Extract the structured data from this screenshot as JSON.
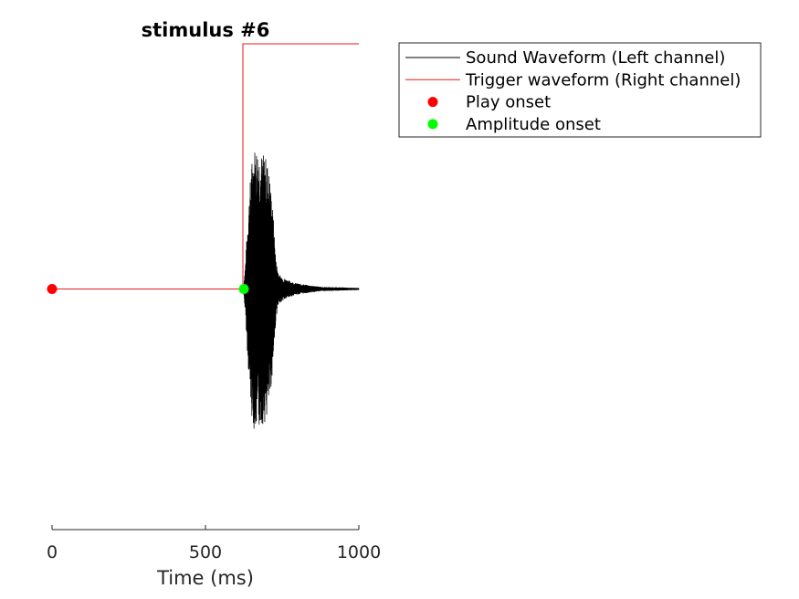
{
  "chart_data": {
    "type": "line",
    "title": "stimulus #6",
    "xlabel": "Time (ms)",
    "ylabel": "",
    "xlim": [
      0,
      1000
    ],
    "ylim": [
      -1.2,
      1.2
    ],
    "x_ticks": [
      0,
      500,
      1000
    ],
    "x_tick_labels": [
      "0",
      "500",
      "1000"
    ],
    "grid": false,
    "legend_position": "outside-top-right",
    "series": [
      {
        "name": "Sound Waveform (Left channel)",
        "kind": "line",
        "color": "#000000",
        "silence_until_ms": 625,
        "envelope": {
          "x": [
            625,
            630,
            640,
            650,
            660,
            670,
            680,
            690,
            700,
            710,
            720,
            730,
            740,
            760,
            790,
            830,
            880,
            940,
            1000
          ],
          "amp": [
            0.03,
            0.12,
            0.4,
            0.62,
            0.7,
            0.7,
            0.67,
            0.66,
            0.64,
            0.55,
            0.38,
            0.14,
            0.07,
            0.05,
            0.03,
            0.02,
            0.01,
            0.008,
            0.005
          ]
        }
      },
      {
        "name": "Trigger waveform (Right channel)",
        "kind": "line",
        "color": "#e41a1c",
        "x": [
          0,
          622,
          622,
          1000
        ],
        "y": [
          0,
          0,
          1.2,
          1.2
        ]
      },
      {
        "name": "Play onset",
        "kind": "marker",
        "color": "#ff0000",
        "x": [
          0
        ],
        "y": [
          0
        ]
      },
      {
        "name": "Amplitude onset",
        "kind": "marker",
        "color": "#00ff00",
        "x": [
          625
        ],
        "y": [
          0
        ]
      }
    ]
  }
}
